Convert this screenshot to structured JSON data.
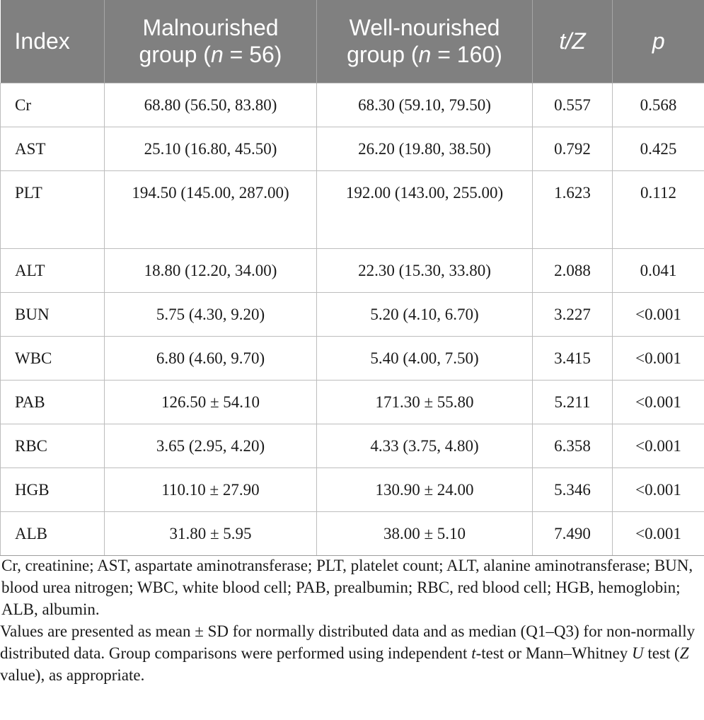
{
  "table": {
    "headers": [
      {
        "label": "Index"
      },
      {
        "pre": "Malnourished",
        "line2_pre": "group (",
        "var": "n",
        "line2_post": " = 56)"
      },
      {
        "pre": "Well-nourished",
        "line2_pre": "group (",
        "var": "n",
        "line2_post": " = 160)"
      },
      {
        "label": "t/Z"
      },
      {
        "label": "p"
      }
    ],
    "rows": [
      {
        "index": "Cr",
        "malnourished": "68.80 (56.50, 83.80)",
        "well_nourished": "68.30 (59.10, 79.50)",
        "tz": "0.557",
        "p": "0.568"
      },
      {
        "index": "AST",
        "malnourished": "25.10 (16.80, 45.50)",
        "well_nourished": "26.20 (19.80, 38.50)",
        "tz": "0.792",
        "p": "0.425"
      },
      {
        "index": "PLT",
        "malnourished": "194.50 (145.00, 287.00)",
        "well_nourished": "192.00 (143.00, 255.00)",
        "tz": "1.623",
        "p": "0.112"
      },
      {
        "index": "ALT",
        "malnourished": "18.80 (12.20, 34.00)",
        "well_nourished": "22.30 (15.30, 33.80)",
        "tz": "2.088",
        "p": "0.041"
      },
      {
        "index": "BUN",
        "malnourished": "5.75 (4.30, 9.20)",
        "well_nourished": "5.20 (4.10, 6.70)",
        "tz": "3.227",
        "p": "<0.001"
      },
      {
        "index": "WBC",
        "malnourished": "6.80 (4.60, 9.70)",
        "well_nourished": "5.40 (4.00, 7.50)",
        "tz": "3.415",
        "p": "<0.001"
      },
      {
        "index": "PAB",
        "malnourished": "126.50 ± 54.10",
        "well_nourished": "171.30 ± 55.80",
        "tz": "5.211",
        "p": "<0.001"
      },
      {
        "index": "RBC",
        "malnourished": "3.65 (2.95, 4.20)",
        "well_nourished": "4.33 (3.75, 4.80)",
        "tz": "6.358",
        "p": "<0.001"
      },
      {
        "index": "HGB",
        "malnourished": "110.10 ± 27.90",
        "well_nourished": "130.90 ± 24.00",
        "tz": "5.346",
        "p": "<0.001"
      },
      {
        "index": "ALB",
        "malnourished": "31.80 ± 5.95",
        "well_nourished": "38.00 ± 5.10",
        "tz": "7.490",
        "p": "<0.001"
      }
    ]
  },
  "footnotes": {
    "abbreviations": "Cr, creatinine; AST, aspartate aminotransferase; PLT, platelet count; ALT, alanine aminotransferase; BUN, blood urea nitrogen; WBC, white blood cell; PAB, prealbumin; RBC, red blood cell; HGB, hemoglobin; ALB, albumin.",
    "methods_part1": "Values are presented as mean ± SD for normally distributed data and as median (Q1–Q3) for non-normally distributed data. Group comparisons were performed using independent ",
    "methods_t": "t",
    "methods_part2": "-test or Mann–Whitney ",
    "methods_u": "U",
    "methods_part3": " test (",
    "methods_z": "Z",
    "methods_part4": " value), as appropriate."
  }
}
